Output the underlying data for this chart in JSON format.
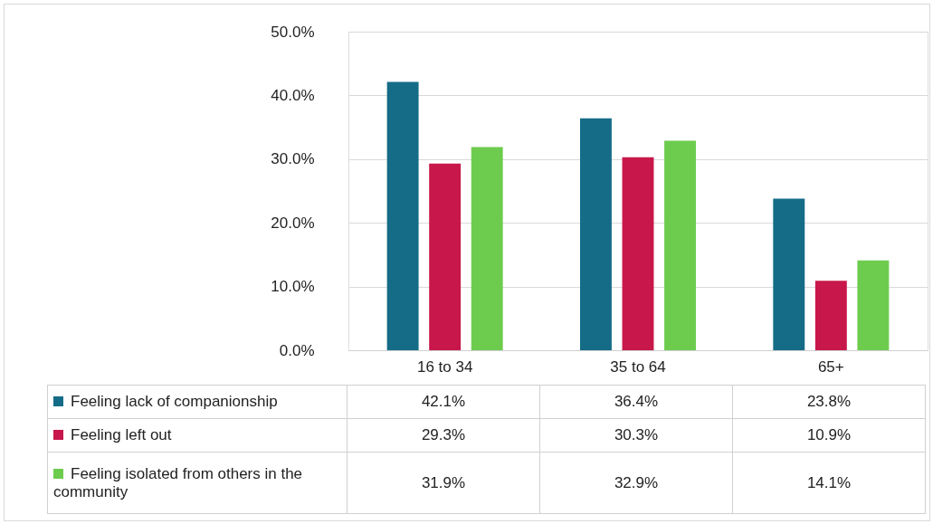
{
  "chart_data": {
    "type": "bar",
    "categories": [
      "16 to 34",
      "35 to 64",
      "65+"
    ],
    "series": [
      {
        "name": "Feeling lack of companionship",
        "color": "#146c87",
        "values": [
          42.1,
          36.4,
          23.8
        ],
        "value_labels": [
          "42.1%",
          "36.4%",
          "23.8%"
        ]
      },
      {
        "name": "Feeling left out",
        "color": "#c8174a",
        "values": [
          29.3,
          30.3,
          10.9
        ],
        "value_labels": [
          "29.3%",
          "30.3%",
          "10.9%"
        ]
      },
      {
        "name": "Feeling isolated from others in the community",
        "color": "#6dcc4e",
        "values": [
          31.9,
          32.9,
          14.1
        ],
        "value_labels": [
          "31.9%",
          "32.9%",
          "14.1%"
        ]
      }
    ],
    "ylim": [
      0,
      50
    ],
    "yticks": [
      {
        "value": 0,
        "label": "0.0%"
      },
      {
        "value": 10,
        "label": "10.0%"
      },
      {
        "value": 20,
        "label": "20.0%"
      },
      {
        "value": 30,
        "label": "30.0%"
      },
      {
        "value": 40,
        "label": "40.0%"
      },
      {
        "value": 50,
        "label": "50.0%"
      }
    ],
    "grid": "y",
    "legend": "bottom"
  }
}
